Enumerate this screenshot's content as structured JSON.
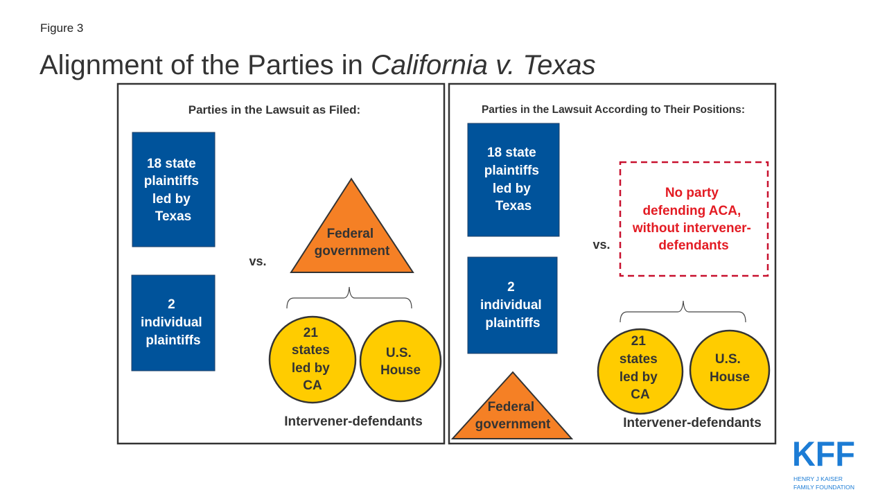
{
  "figure_label": "Figure 3",
  "title": {
    "main": "Alignment of the Parties in ",
    "italic": "California v. Texas"
  },
  "colors": {
    "blue": "#00539b",
    "orange": "#f58025",
    "yellow": "#ffcc00",
    "red": "#e31b23",
    "text": "#333333",
    "kff_blue": "#1c7cd5"
  },
  "left_panel": {
    "heading": "Parties in the Lawsuit as Filed:",
    "box1": [
      "18 state",
      "plaintiffs",
      "led by",
      "Texas"
    ],
    "box2": [
      "2",
      "individual",
      "plaintiffs"
    ],
    "vs": "vs.",
    "triangle": [
      "Federal",
      "government"
    ],
    "circle1": [
      "21",
      "states",
      "led by",
      "CA"
    ],
    "circle2": [
      "U.S.",
      "House"
    ],
    "group_label": "Intervener-defendants"
  },
  "right_panel": {
    "heading": "Parties in the Lawsuit According to Their Positions:",
    "box1": [
      "18 state",
      "plaintiffs",
      "led by",
      "Texas"
    ],
    "box2": [
      "2",
      "individual",
      "plaintiffs"
    ],
    "vs": "vs.",
    "dashed_box": [
      "No party",
      "defending ACA,",
      "without intervener-",
      "defendants"
    ],
    "triangle": [
      "Federal",
      "government"
    ],
    "circle1": [
      "21",
      "states",
      "led by",
      "CA"
    ],
    "circle2": [
      "U.S.",
      "House"
    ],
    "group_label": "Intervener-defendants"
  },
  "logo": {
    "mark": "KFF",
    "line1": "HENRY J KAISER",
    "line2": "FAMILY FOUNDATION"
  }
}
